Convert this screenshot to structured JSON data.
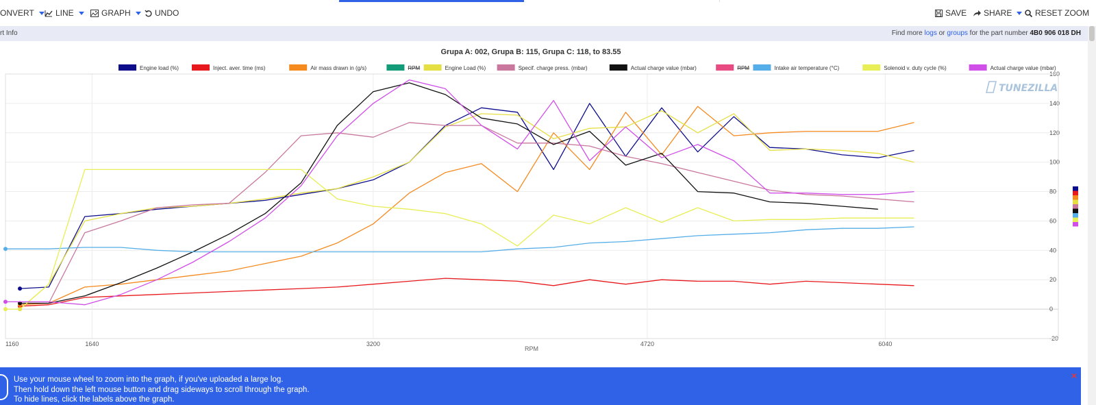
{
  "toolbar": {
    "convert": "ONVERT",
    "line": "LINE",
    "graph": "GRAPH",
    "undo": "UNDO",
    "save": "SAVE",
    "share": "SHARE",
    "reset_zoom": "RESET ZOOM"
  },
  "info": {
    "left": "rt Info",
    "find_more": "Find more",
    "logs": "logs",
    "or": "or",
    "groups": "groups",
    "for_part": "for the part number",
    "part_number": "4B0 906 018 DH"
  },
  "alert": {
    "line1": "Use your mouse wheel to zoom into the graph, if you've uploaded a large log.",
    "line2": "Then hold down the left mouse button and drag sideways to scroll through the graph.",
    "line3": "To hide lines, click the labels above the graph.",
    "close": "×"
  },
  "chart_data": {
    "type": "line",
    "title": "Grupa A: 002, Grupa B: 115, Grupa C: 118, to 83.55",
    "xlabel": "RPM",
    "xlim": [
      1160,
      7000
    ],
    "x_ticks": [
      1160,
      1640,
      3200,
      4720,
      6040
    ],
    "y2lim": [
      -20,
      160
    ],
    "y2_ticks": [
      -20,
      0,
      20,
      40,
      60,
      80,
      100,
      120,
      140,
      160
    ],
    "grid": true,
    "watermark": "TUNEZILLA",
    "legend_position": "top",
    "series": [
      {
        "name": "Engine load (%)",
        "color": "#0d0d8c",
        "hidden": false,
        "points": [
          [
            1240,
            14
          ],
          [
            1400,
            15
          ],
          [
            1600,
            63
          ],
          [
            1800,
            65
          ],
          [
            2000,
            68
          ],
          [
            2200,
            70
          ],
          [
            2400,
            72
          ],
          [
            2600,
            74
          ],
          [
            2800,
            78
          ],
          [
            3000,
            82
          ],
          [
            3200,
            88
          ],
          [
            3400,
            100
          ],
          [
            3600,
            125
          ],
          [
            3800,
            137
          ],
          [
            4000,
            134
          ],
          [
            4200,
            95
          ],
          [
            4400,
            140
          ],
          [
            4600,
            104
          ],
          [
            4800,
            137
          ],
          [
            5000,
            107
          ],
          [
            5200,
            131
          ],
          [
            5400,
            110
          ],
          [
            5600,
            109
          ],
          [
            5800,
            105
          ],
          [
            6000,
            103
          ],
          [
            6200,
            108
          ]
        ]
      },
      {
        "name": "Inject. aver. time (ms)",
        "color": "#e8191c",
        "hidden": false,
        "points": [
          [
            1240,
            2
          ],
          [
            1400,
            3
          ],
          [
            1600,
            8
          ],
          [
            1800,
            9
          ],
          [
            2000,
            10
          ],
          [
            2200,
            11
          ],
          [
            2400,
            12
          ],
          [
            2600,
            13
          ],
          [
            2800,
            14
          ],
          [
            3000,
            15
          ],
          [
            3200,
            17
          ],
          [
            3400,
            19
          ],
          [
            3600,
            21
          ],
          [
            3800,
            20
          ],
          [
            4000,
            19
          ],
          [
            4200,
            16
          ],
          [
            4400,
            20
          ],
          [
            4600,
            17
          ],
          [
            4800,
            20
          ],
          [
            5000,
            19
          ],
          [
            5200,
            19
          ],
          [
            5400,
            17
          ],
          [
            5600,
            19
          ],
          [
            5800,
            18
          ],
          [
            6000,
            17
          ],
          [
            6200,
            16
          ]
        ]
      },
      {
        "name": "Air mass drawn in (g/s)",
        "color": "#f58a1f",
        "hidden": false,
        "points": [
          [
            1240,
            3
          ],
          [
            1400,
            4
          ],
          [
            1600,
            15
          ],
          [
            1800,
            17
          ],
          [
            2000,
            20
          ],
          [
            2200,
            23
          ],
          [
            2400,
            26
          ],
          [
            2600,
            31
          ],
          [
            2800,
            36
          ],
          [
            3000,
            45
          ],
          [
            3200,
            58
          ],
          [
            3400,
            79
          ],
          [
            3600,
            93
          ],
          [
            3800,
            99
          ],
          [
            4000,
            80
          ],
          [
            4200,
            120
          ],
          [
            4400,
            95
          ],
          [
            4600,
            134
          ],
          [
            4800,
            105
          ],
          [
            5000,
            138
          ],
          [
            5200,
            118
          ],
          [
            5400,
            120
          ],
          [
            5600,
            121
          ],
          [
            5800,
            121
          ],
          [
            6000,
            121
          ],
          [
            6200,
            127
          ]
        ]
      },
      {
        "name": "RPM",
        "color": "#129b78",
        "hidden": true,
        "points": []
      },
      {
        "name": "Engine Load (%)",
        "color": "#e6df44",
        "hidden": false,
        "points": [
          [
            1240,
            0
          ],
          [
            1400,
            17
          ],
          [
            1600,
            60
          ],
          [
            1800,
            65
          ],
          [
            2000,
            69
          ],
          [
            2200,
            70
          ],
          [
            2400,
            72
          ],
          [
            2600,
            75
          ],
          [
            2800,
            79
          ],
          [
            3000,
            82
          ],
          [
            3200,
            90
          ],
          [
            3400,
            100
          ],
          [
            3600,
            124
          ],
          [
            3800,
            133
          ],
          [
            4000,
            132
          ],
          [
            4200,
            116
          ],
          [
            4400,
            123
          ],
          [
            4600,
            124
          ],
          [
            4800,
            135
          ],
          [
            5000,
            120
          ],
          [
            5200,
            133
          ],
          [
            5400,
            108
          ],
          [
            5600,
            109
          ],
          [
            5800,
            108
          ],
          [
            6000,
            106
          ],
          [
            6200,
            100
          ]
        ]
      },
      {
        "name": "Specif. charge press. (mbar)",
        "color": "#c9779d",
        "hidden": false,
        "points": [
          [
            1240,
            4
          ],
          [
            1400,
            4
          ],
          [
            1600,
            52
          ],
          [
            1800,
            60
          ],
          [
            2000,
            69
          ],
          [
            2200,
            71
          ],
          [
            2400,
            72
          ],
          [
            2600,
            93
          ],
          [
            2800,
            118
          ],
          [
            3000,
            120
          ],
          [
            3200,
            117
          ],
          [
            3400,
            127
          ],
          [
            3600,
            125
          ],
          [
            3800,
            125
          ],
          [
            4000,
            113
          ],
          [
            4200,
            113
          ],
          [
            4400,
            111
          ],
          [
            4600,
            104
          ],
          [
            4800,
            99
          ],
          [
            5000,
            93
          ],
          [
            5200,
            87
          ],
          [
            5400,
            81
          ],
          [
            5600,
            78
          ],
          [
            5800,
            77
          ],
          [
            6000,
            75
          ],
          [
            6200,
            73
          ]
        ]
      },
      {
        "name": "Actual charge value (mbar)",
        "color": "#111111",
        "hidden": false,
        "points": [
          [
            1240,
            4
          ],
          [
            1400,
            4
          ],
          [
            1600,
            9
          ],
          [
            1800,
            18
          ],
          [
            2000,
            28
          ],
          [
            2200,
            39
          ],
          [
            2400,
            51
          ],
          [
            2600,
            65
          ],
          [
            2800,
            86
          ],
          [
            3000,
            125
          ],
          [
            3200,
            148
          ],
          [
            3400,
            154
          ],
          [
            3600,
            146
          ],
          [
            3800,
            130
          ],
          [
            4000,
            126
          ],
          [
            4200,
            112
          ],
          [
            4400,
            121
          ],
          [
            4600,
            98
          ],
          [
            4800,
            106
          ],
          [
            5000,
            80
          ],
          [
            5200,
            79
          ],
          [
            5400,
            73
          ],
          [
            5600,
            72
          ],
          [
            5800,
            70
          ],
          [
            6000,
            68
          ]
        ]
      },
      {
        "name": "RPM",
        "color": "#e84a82",
        "hidden": true,
        "points": []
      },
      {
        "name": "Intake air temperature (°C)",
        "color": "#55aee8",
        "hidden": false,
        "points": [
          [
            1160,
            41
          ],
          [
            1400,
            41
          ],
          [
            1600,
            42
          ],
          [
            1800,
            42
          ],
          [
            2000,
            40
          ],
          [
            2200,
            39
          ],
          [
            2400,
            39
          ],
          [
            2600,
            39
          ],
          [
            2800,
            39
          ],
          [
            3000,
            39
          ],
          [
            3200,
            39
          ],
          [
            3400,
            39
          ],
          [
            3600,
            39
          ],
          [
            3800,
            39
          ],
          [
            4000,
            41
          ],
          [
            4200,
            42
          ],
          [
            4400,
            45
          ],
          [
            4600,
            46
          ],
          [
            4800,
            48
          ],
          [
            5000,
            50
          ],
          [
            5200,
            51
          ],
          [
            5400,
            52
          ],
          [
            5600,
            54
          ],
          [
            5800,
            55
          ],
          [
            6000,
            55
          ],
          [
            6200,
            56
          ]
        ]
      },
      {
        "name": "Solenoid v. duty cycle (%)",
        "color": "#e8ee55",
        "hidden": false,
        "points": [
          [
            1160,
            0
          ],
          [
            1240,
            0
          ],
          [
            1400,
            17
          ],
          [
            1600,
            95
          ],
          [
            2000,
            95
          ],
          [
            2400,
            95
          ],
          [
            2600,
            95
          ],
          [
            2800,
            95
          ],
          [
            3000,
            75
          ],
          [
            3200,
            70
          ],
          [
            3400,
            68
          ],
          [
            3600,
            65
          ],
          [
            3800,
            58
          ],
          [
            4000,
            43
          ],
          [
            4200,
            64
          ],
          [
            4400,
            58
          ],
          [
            4600,
            69
          ],
          [
            4800,
            59
          ],
          [
            5000,
            69
          ],
          [
            5200,
            60
          ],
          [
            5400,
            61
          ],
          [
            5600,
            61
          ],
          [
            5800,
            62
          ],
          [
            6000,
            62
          ],
          [
            6200,
            62
          ]
        ]
      },
      {
        "name": "Actual charge value (mbar)",
        "color": "#d04fe8",
        "hidden": false,
        "points": [
          [
            1160,
            5
          ],
          [
            1400,
            5
          ],
          [
            1600,
            3
          ],
          [
            1800,
            10
          ],
          [
            2000,
            20
          ],
          [
            2200,
            32
          ],
          [
            2400,
            46
          ],
          [
            2600,
            62
          ],
          [
            2800,
            84
          ],
          [
            3000,
            118
          ],
          [
            3200,
            140
          ],
          [
            3400,
            156
          ],
          [
            3600,
            150
          ],
          [
            3800,
            125
          ],
          [
            4000,
            109
          ],
          [
            4200,
            142
          ],
          [
            4400,
            101
          ],
          [
            4600,
            124
          ],
          [
            4800,
            103
          ],
          [
            5000,
            112
          ],
          [
            5200,
            101
          ],
          [
            5400,
            79
          ],
          [
            5600,
            79
          ],
          [
            5800,
            78
          ],
          [
            6000,
            78
          ],
          [
            6200,
            80
          ]
        ]
      }
    ]
  }
}
